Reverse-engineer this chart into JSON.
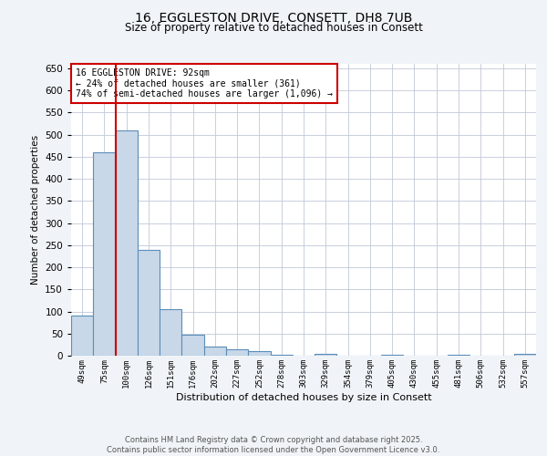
{
  "title_line1": "16, EGGLESTON DRIVE, CONSETT, DH8 7UB",
  "title_line2": "Size of property relative to detached houses in Consett",
  "xlabel": "Distribution of detached houses by size in Consett",
  "ylabel": "Number of detached properties",
  "bar_labels": [
    "49sqm",
    "75sqm",
    "100sqm",
    "126sqm",
    "151sqm",
    "176sqm",
    "202sqm",
    "227sqm",
    "252sqm",
    "278sqm",
    "303sqm",
    "329sqm",
    "354sqm",
    "379sqm",
    "405sqm",
    "430sqm",
    "455sqm",
    "481sqm",
    "506sqm",
    "532sqm",
    "557sqm"
  ],
  "bar_values": [
    90,
    460,
    510,
    240,
    105,
    48,
    20,
    15,
    10,
    3,
    0,
    5,
    0,
    0,
    3,
    0,
    0,
    3,
    0,
    0,
    5
  ],
  "bar_color": "#c8d8e8",
  "bar_edge_color": "#5b8db8",
  "vline_x_index": 2,
  "vline_color": "#cc0000",
  "ylim": [
    0,
    660
  ],
  "yticks": [
    0,
    50,
    100,
    150,
    200,
    250,
    300,
    350,
    400,
    450,
    500,
    550,
    600,
    650
  ],
  "annotation_text": "16 EGGLESTON DRIVE: 92sqm\n← 24% of detached houses are smaller (361)\n74% of semi-detached houses are larger (1,096) →",
  "annotation_box_color": "#ffffff",
  "annotation_edge_color": "#cc0000",
  "footer_line1": "Contains HM Land Registry data © Crown copyright and database right 2025.",
  "footer_line2": "Contains public sector information licensed under the Open Government Licence v3.0.",
  "bg_color": "#f0f4f8",
  "plot_bg_color": "#ffffff",
  "grid_color": "#c0c8d8"
}
